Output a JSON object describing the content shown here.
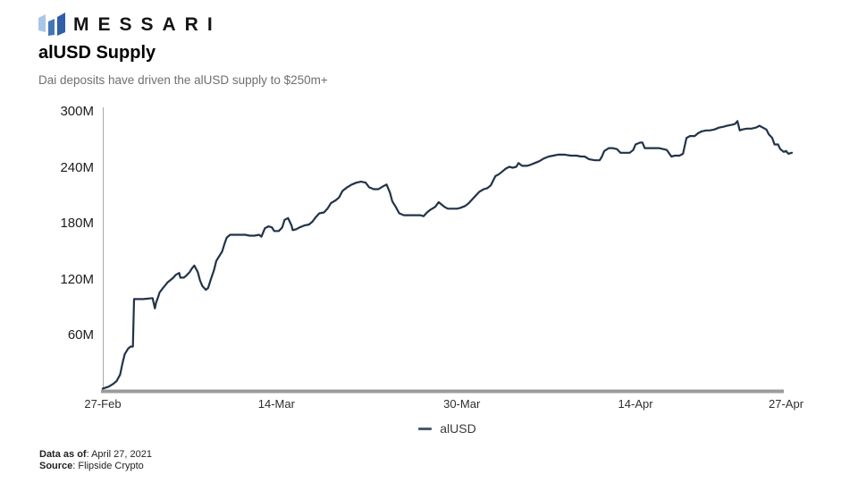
{
  "brand": {
    "wordmark": "MESSARI",
    "logo_colors": {
      "left": "#a9c6e8",
      "middle": "#4377b8",
      "right": "#315fa7"
    }
  },
  "header": {
    "title": "alUSD Supply",
    "subtitle": "Dai deposits have driven the alUSD supply to $250m+"
  },
  "footer": {
    "data_as_of_label": "Data as of",
    "data_as_of_value": ": April 27, 2021",
    "source_label": "Source",
    "source_value": ": Flipside Crypto"
  },
  "colors": {
    "line": "#223349",
    "axis": "#a9a9a9",
    "baseline": "#9b9b9b",
    "legend_dash": "#4a5a70"
  },
  "chart_data": {
    "type": "line",
    "title": "alUSD Supply",
    "subtitle": "Dai deposits have driven the alUSD supply to $250m+",
    "xlabel": "",
    "ylabel": "",
    "y_unit": "M (millions of alUSD)",
    "ylim": [
      0,
      300
    ],
    "xlim_days_from_27Feb2021": [
      0,
      59.5
    ],
    "grid": false,
    "legend_position": "bottom-center",
    "y_ticks": [
      {
        "v": 60,
        "label": "60M"
      },
      {
        "v": 120,
        "label": "120M"
      },
      {
        "v": 180,
        "label": "180M"
      },
      {
        "v": 240,
        "label": "240M"
      },
      {
        "v": 300,
        "label": "300M"
      }
    ],
    "x_ticks": [
      {
        "day": 0,
        "label": "27-Feb"
      },
      {
        "day": 15,
        "label": "14-Mar"
      },
      {
        "day": 31,
        "label": "30-Mar"
      },
      {
        "day": 46,
        "label": "14-Apr"
      },
      {
        "day": 59,
        "label": "27-Apr"
      }
    ],
    "series": [
      {
        "name": "alUSD",
        "color": "#223349",
        "points": [
          [
            0,
            3
          ],
          [
            0.5,
            5
          ],
          [
            0.9,
            8
          ],
          [
            1.2,
            11
          ],
          [
            1.5,
            18
          ],
          [
            1.7,
            30
          ],
          [
            1.9,
            40
          ],
          [
            2.2,
            46
          ],
          [
            2.4,
            48
          ],
          [
            2.6,
            48
          ],
          [
            2.7,
            99
          ],
          [
            3.5,
            99
          ],
          [
            4.3,
            100
          ],
          [
            4.5,
            89
          ],
          [
            4.6,
            95
          ],
          [
            4.8,
            102
          ],
          [
            4.9,
            106
          ],
          [
            5.2,
            111
          ],
          [
            5.4,
            114
          ],
          [
            5.6,
            117
          ],
          [
            5.9,
            120
          ],
          [
            6.1,
            122
          ],
          [
            6.3,
            125
          ],
          [
            6.6,
            127
          ],
          [
            6.7,
            122
          ],
          [
            7.0,
            122
          ],
          [
            7.2,
            124
          ],
          [
            7.5,
            128
          ],
          [
            7.7,
            132
          ],
          [
            7.9,
            135
          ],
          [
            8.2,
            128
          ],
          [
            8.4,
            119
          ],
          [
            8.6,
            113
          ],
          [
            8.9,
            109
          ],
          [
            9.1,
            111
          ],
          [
            9.3,
            119
          ],
          [
            9.6,
            130
          ],
          [
            9.8,
            140
          ],
          [
            10.0,
            144
          ],
          [
            10.3,
            150
          ],
          [
            10.5,
            158
          ],
          [
            10.7,
            165
          ],
          [
            11.0,
            168
          ],
          [
            11.3,
            168
          ],
          [
            11.8,
            168
          ],
          [
            12.3,
            168
          ],
          [
            12.7,
            167
          ],
          [
            13.1,
            167
          ],
          [
            13.5,
            168
          ],
          [
            13.7,
            166
          ],
          [
            14.0,
            175
          ],
          [
            14.3,
            177
          ],
          [
            14.6,
            176
          ],
          [
            14.8,
            172
          ],
          [
            15.2,
            172
          ],
          [
            15.5,
            176
          ],
          [
            15.7,
            184
          ],
          [
            16.0,
            186
          ],
          [
            16.3,
            178
          ],
          [
            16.4,
            173
          ],
          [
            16.7,
            174
          ],
          [
            17.0,
            176
          ],
          [
            17.4,
            178
          ],
          [
            17.8,
            179
          ],
          [
            18.1,
            182
          ],
          [
            18.4,
            187
          ],
          [
            18.7,
            191
          ],
          [
            19.1,
            192
          ],
          [
            19.4,
            196
          ],
          [
            19.7,
            202
          ],
          [
            20.1,
            205
          ],
          [
            20.4,
            208
          ],
          [
            20.7,
            215
          ],
          [
            21.1,
            219
          ],
          [
            21.5,
            222
          ],
          [
            21.9,
            224
          ],
          [
            22.3,
            225
          ],
          [
            22.7,
            224
          ],
          [
            23.0,
            219
          ],
          [
            23.4,
            217
          ],
          [
            23.8,
            217
          ],
          [
            24.2,
            220
          ],
          [
            24.5,
            222
          ],
          [
            24.8,
            213
          ],
          [
            25.0,
            204
          ],
          [
            25.3,
            198
          ],
          [
            25.6,
            191
          ],
          [
            26.0,
            189
          ],
          [
            26.5,
            189
          ],
          [
            26.9,
            189
          ],
          [
            27.4,
            189
          ],
          [
            27.7,
            188
          ],
          [
            28.0,
            192
          ],
          [
            28.3,
            195
          ],
          [
            28.7,
            198
          ],
          [
            29.0,
            203
          ],
          [
            29.2,
            201
          ],
          [
            29.5,
            198
          ],
          [
            29.8,
            196
          ],
          [
            30.2,
            196
          ],
          [
            30.6,
            196
          ],
          [
            30.9,
            197
          ],
          [
            31.3,
            199
          ],
          [
            31.6,
            202
          ],
          [
            31.9,
            206
          ],
          [
            32.2,
            210
          ],
          [
            32.5,
            214
          ],
          [
            32.9,
            217
          ],
          [
            33.2,
            218
          ],
          [
            33.5,
            221
          ],
          [
            33.7,
            226
          ],
          [
            33.9,
            231
          ],
          [
            34.2,
            233
          ],
          [
            34.5,
            236
          ],
          [
            34.8,
            239
          ],
          [
            35.1,
            241
          ],
          [
            35.4,
            240
          ],
          [
            35.7,
            241
          ],
          [
            35.9,
            245
          ],
          [
            36.2,
            242
          ],
          [
            36.6,
            242
          ],
          [
            36.9,
            243
          ],
          [
            37.3,
            245
          ],
          [
            37.7,
            247
          ],
          [
            38.1,
            250
          ],
          [
            38.5,
            252
          ],
          [
            38.9,
            253
          ],
          [
            39.3,
            254
          ],
          [
            39.9,
            254
          ],
          [
            40.4,
            253
          ],
          [
            40.9,
            253
          ],
          [
            41.3,
            252
          ],
          [
            41.6,
            252
          ],
          [
            42.0,
            249
          ],
          [
            42.5,
            248
          ],
          [
            42.9,
            248
          ],
          [
            43.1,
            252
          ],
          [
            43.3,
            258
          ],
          [
            43.7,
            261
          ],
          [
            44.0,
            261
          ],
          [
            44.4,
            260
          ],
          [
            44.7,
            256
          ],
          [
            45.1,
            256
          ],
          [
            45.5,
            256
          ],
          [
            45.8,
            259
          ],
          [
            46.0,
            265
          ],
          [
            46.4,
            267
          ],
          [
            46.6,
            267
          ],
          [
            46.8,
            261
          ],
          [
            47.2,
            261
          ],
          [
            47.7,
            261
          ],
          [
            48.0,
            261
          ],
          [
            48.4,
            260
          ],
          [
            48.7,
            259
          ],
          [
            49.1,
            252
          ],
          [
            49.4,
            253
          ],
          [
            49.8,
            253
          ],
          [
            50.1,
            255
          ],
          [
            50.4,
            272
          ],
          [
            50.7,
            274
          ],
          [
            51.1,
            274
          ],
          [
            51.4,
            277
          ],
          [
            51.7,
            279
          ],
          [
            52.1,
            280
          ],
          [
            52.4,
            280
          ],
          [
            52.8,
            281
          ],
          [
            53.2,
            283
          ],
          [
            53.6,
            284
          ],
          [
            53.9,
            285
          ],
          [
            54.3,
            286
          ],
          [
            54.6,
            287
          ],
          [
            54.8,
            290
          ],
          [
            55.0,
            280
          ],
          [
            55.2,
            281
          ],
          [
            55.6,
            282
          ],
          [
            56.0,
            282
          ],
          [
            56.4,
            283
          ],
          [
            56.7,
            285
          ],
          [
            57.0,
            283
          ],
          [
            57.3,
            281
          ],
          [
            57.5,
            276
          ],
          [
            57.8,
            272
          ],
          [
            58.0,
            265
          ],
          [
            58.3,
            265
          ],
          [
            58.5,
            260
          ],
          [
            58.8,
            257
          ],
          [
            59.0,
            258
          ],
          [
            59.2,
            255
          ],
          [
            59.5,
            256
          ]
        ]
      }
    ]
  }
}
